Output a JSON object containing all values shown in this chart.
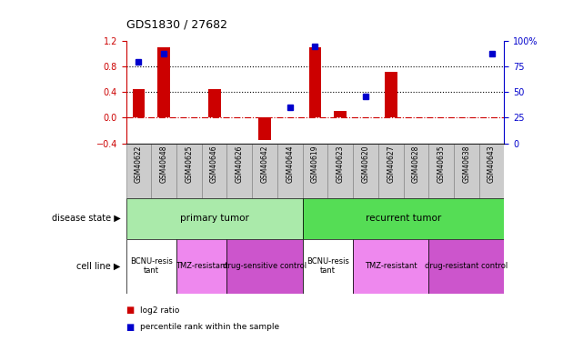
{
  "title": "GDS1830 / 27682",
  "samples": [
    "GSM40622",
    "GSM40648",
    "GSM40625",
    "GSM40646",
    "GSM40626",
    "GSM40642",
    "GSM40644",
    "GSM40619",
    "GSM40623",
    "GSM40620",
    "GSM40627",
    "GSM40628",
    "GSM40635",
    "GSM40638",
    "GSM40643"
  ],
  "log2_ratio": [
    0.45,
    1.1,
    0.0,
    0.45,
    0.0,
    -0.35,
    0.0,
    1.1,
    0.1,
    0.0,
    0.72,
    0.0,
    0.0,
    0.0,
    0.0
  ],
  "percentile_rank": [
    80,
    88,
    0,
    0,
    0,
    0,
    35,
    95,
    0,
    46,
    0,
    0,
    0,
    0,
    88
  ],
  "bar_color": "#cc0000",
  "dot_color": "#0000cc",
  "ylim_left": [
    -0.4,
    1.2
  ],
  "ylim_right": [
    0,
    100
  ],
  "yticks_left": [
    -0.4,
    0.0,
    0.4,
    0.8,
    1.2
  ],
  "yticks_right": [
    0,
    25,
    50,
    75,
    100
  ],
  "hline_dotted": [
    0.4,
    0.8
  ],
  "zero_line": 0.0,
  "disease_state_groups": [
    {
      "label": "primary tumor",
      "start": 0,
      "end": 7,
      "color": "#aaeaaa"
    },
    {
      "label": "recurrent tumor",
      "start": 7,
      "end": 15,
      "color": "#55dd55"
    }
  ],
  "cell_line_groups": [
    {
      "label": "BCNU-resis\ntant",
      "start": 0,
      "end": 2,
      "color": "#ffffff"
    },
    {
      "label": "TMZ-resistant",
      "start": 2,
      "end": 4,
      "color": "#ee88ee"
    },
    {
      "label": "drug-sensitive control",
      "start": 4,
      "end": 7,
      "color": "#cc55cc"
    },
    {
      "label": "BCNU-resis\ntant",
      "start": 7,
      "end": 9,
      "color": "#ffffff"
    },
    {
      "label": "TMZ-resistant",
      "start": 9,
      "end": 12,
      "color": "#ee88ee"
    },
    {
      "label": "drug-resistant control",
      "start": 12,
      "end": 15,
      "color": "#cc55cc"
    }
  ],
  "left_tick_color": "#cc0000",
  "right_tick_color": "#0000cc",
  "background_color": "#ffffff",
  "legend_items": [
    {
      "label": "log2 ratio",
      "color": "#cc0000"
    },
    {
      "label": "percentile rank within the sample",
      "color": "#0000cc"
    }
  ]
}
